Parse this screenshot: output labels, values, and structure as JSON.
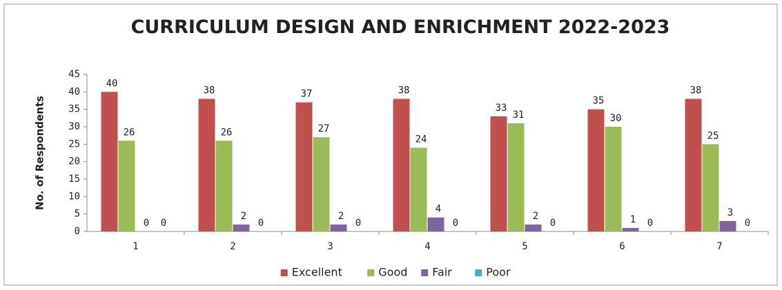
{
  "chart_data": {
    "type": "bar",
    "title": "CURRICULUM DESIGN AND ENRICHMENT 2022-2023",
    "y_label": "No. of Respondents",
    "categories": [
      "1",
      "2",
      "3",
      "4",
      "5",
      "6",
      "7"
    ],
    "series": [
      {
        "name": "Excellent",
        "color": "#c0504d",
        "values": [
          40,
          38,
          37,
          38,
          33,
          35,
          38
        ]
      },
      {
        "name": "Good",
        "color": "#9bbb59",
        "values": [
          26,
          26,
          27,
          24,
          31,
          30,
          25
        ]
      },
      {
        "name": "Fair",
        "color": "#8064a2",
        "values": [
          0,
          2,
          2,
          4,
          2,
          1,
          3
        ]
      },
      {
        "name": "Poor",
        "color": "#4bacc6",
        "values": [
          0,
          0,
          0,
          0,
          0,
          0,
          0
        ]
      }
    ],
    "ylim": [
      0,
      45
    ],
    "yticks": [
      0,
      5,
      10,
      15,
      20,
      25,
      30,
      35,
      40,
      45
    ],
    "grid": false,
    "legend": "bottom"
  }
}
